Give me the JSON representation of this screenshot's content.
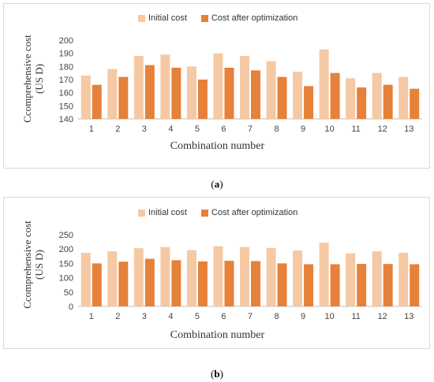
{
  "colors": {
    "initial": "#f5c9a4",
    "optimized": "#e6813a"
  },
  "captions": {
    "a_open": "(",
    "a_letter": "a",
    "a_close": ")",
    "b_open": "(",
    "b_letter": "b",
    "b_close": ")"
  },
  "chart_data": [
    {
      "type": "bar",
      "panel": "a",
      "categories": [
        "1",
        "2",
        "3",
        "4",
        "5",
        "6",
        "7",
        "8",
        "9",
        "10",
        "11",
        "12",
        "13"
      ],
      "series": [
        {
          "name": "Initial cost",
          "values": [
            173,
            178,
            188,
            189,
            180,
            190,
            188,
            184,
            176,
            193,
            171,
            175,
            172
          ]
        },
        {
          "name": "Cost after optimization",
          "values": [
            166,
            172,
            181,
            179,
            170,
            179,
            177,
            172,
            165,
            175,
            164,
            166,
            163
          ]
        }
      ],
      "xlabel": "Combination number",
      "ylabel_line1": "Ccomprehensive cost",
      "ylabel_line2": "(US D)",
      "ylim": [
        140,
        200
      ],
      "yticks": [
        "140",
        "150",
        "160",
        "170",
        "180",
        "190",
        "200"
      ],
      "legend": "top-center",
      "grid": false
    },
    {
      "type": "bar",
      "panel": "b",
      "categories": [
        "1",
        "2",
        "3",
        "4",
        "5",
        "6",
        "7",
        "8",
        "9",
        "10",
        "11",
        "12",
        "13"
      ],
      "series": [
        {
          "name": "Initial cost",
          "values": [
            187,
            192,
            203,
            207,
            196,
            210,
            207,
            204,
            195,
            222,
            185,
            192,
            187
          ]
        },
        {
          "name": "Cost after optimization",
          "values": [
            150,
            156,
            166,
            161,
            157,
            159,
            158,
            150,
            147,
            147,
            148,
            148,
            147
          ]
        }
      ],
      "xlabel": "Combination number",
      "ylabel_line1": "Ccomprehensive cost",
      "ylabel_line2": "(US D)",
      "ylim": [
        0,
        250
      ],
      "yticks": [
        "0",
        "50",
        "100",
        "150",
        "200",
        "250"
      ],
      "legend": "top-center",
      "grid": false
    }
  ]
}
